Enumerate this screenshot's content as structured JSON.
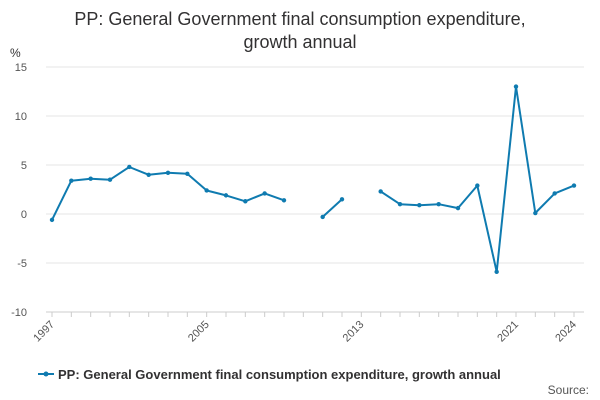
{
  "chart_data": {
    "type": "line",
    "title_lines": [
      "PP: General Government final consumption expenditure,",
      "growth annual"
    ],
    "ylabel": "%",
    "ylim": [
      -10,
      15
    ],
    "yticks": [
      15,
      10,
      5,
      0,
      -5,
      -10
    ],
    "xlim": [
      1997,
      2024
    ],
    "xticks": [
      "1997",
      "2005",
      "2013",
      "2021",
      "2024"
    ],
    "grid": true,
    "series": [
      {
        "name": "PP: General Government final consumption expenditure, growth annual",
        "color": "#0f7bb0",
        "x": [
          1997,
          1998,
          1999,
          2000,
          2001,
          2002,
          2003,
          2004,
          2005,
          2006,
          2007,
          2008,
          2009,
          2010,
          2011,
          2012,
          2013,
          2014,
          2015,
          2016,
          2017,
          2018,
          2019,
          2020,
          2021,
          2022,
          2023,
          2024
        ],
        "values": [
          -0.6,
          3.4,
          3.6,
          3.5,
          4.8,
          4.0,
          4.2,
          4.1,
          2.4,
          1.9,
          1.3,
          2.1,
          1.4,
          null,
          -0.3,
          1.5,
          null,
          2.3,
          1.0,
          0.9,
          1.0,
          0.6,
          2.9,
          -5.9,
          13.0,
          0.1,
          2.1,
          2.9
        ]
      }
    ],
    "legend_position": "bottom-left",
    "source_label": "Source:"
  }
}
